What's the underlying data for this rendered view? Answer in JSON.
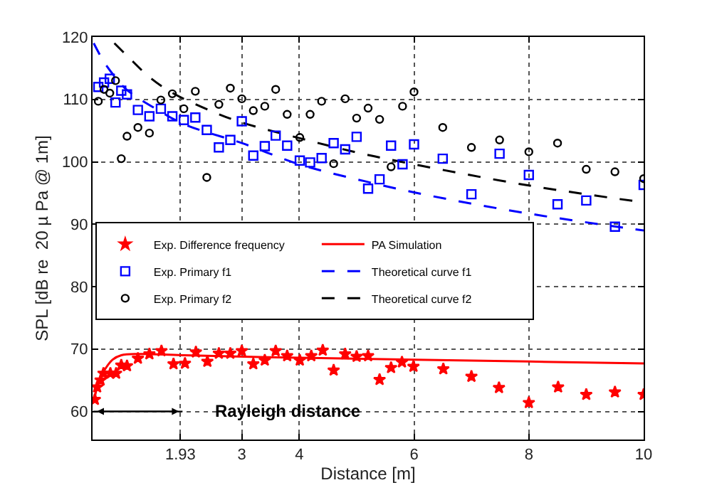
{
  "chart_data": {
    "type": "scatter",
    "xlabel": "Distance [m]",
    "ylabel": "SPL [dB re  20 µ Pa @ 1m]",
    "xlim": [
      0.4,
      10
    ],
    "ylim": [
      55.5,
      120
    ],
    "xticks": [
      1.93,
      3,
      4,
      6,
      8,
      10
    ],
    "yticks": [
      60,
      70,
      80,
      90,
      100,
      110,
      120
    ],
    "grid": true,
    "legend": "left",
    "annotations": [
      "Rayleigh distance"
    ],
    "series": [
      {
        "name": "Exp. Difference frequency",
        "marker": "star",
        "color": "#ff0000",
        "x": [
          0.44,
          0.48,
          0.54,
          0.59,
          0.71,
          0.81,
          0.9,
          1.0,
          1.19,
          1.39,
          1.6,
          1.81,
          2.01,
          2.2,
          2.4,
          2.6,
          2.8,
          3.0,
          3.2,
          3.4,
          3.59,
          3.79,
          4.01,
          4.21,
          4.41,
          4.6,
          4.8,
          5.0,
          5.2,
          5.4,
          5.6,
          5.79,
          5.99,
          6.51,
          7.0,
          7.48,
          8.0,
          8.51,
          9.0,
          9.5,
          10.0
        ],
        "values": [
          61.9,
          63.9,
          65.0,
          66.1,
          66.1,
          66.1,
          67.4,
          67.3,
          68.5,
          69.2,
          69.7,
          67.6,
          67.7,
          69.5,
          68.0,
          69.3,
          69.3,
          69.7,
          67.6,
          68.2,
          69.7,
          68.9,
          68.2,
          68.9,
          69.8,
          66.6,
          69.2,
          68.8,
          68.9,
          65.1,
          67.0,
          67.9,
          67.2,
          66.8,
          65.6,
          63.8,
          61.4,
          63.9,
          62.7,
          63.1,
          62.7
        ]
      },
      {
        "name": "PA Simulation",
        "type": "line",
        "line_style": "solid",
        "color": "#ff0000",
        "x": [
          0.42,
          0.5,
          0.6,
          0.75,
          0.9,
          1.2,
          2,
          4,
          6,
          8,
          10
        ],
        "values": [
          61.5,
          64.5,
          66.5,
          68.3,
          69.0,
          69.2,
          69.0,
          68.6,
          68.3,
          68.0,
          67.7
        ]
      },
      {
        "name": "Exp. Primary f1",
        "marker": "square",
        "color": "#0000ff",
        "x": [
          0.5,
          0.6,
          0.7,
          0.8,
          0.9,
          1.0,
          1.19,
          1.39,
          1.59,
          1.79,
          1.99,
          2.19,
          2.39,
          2.6,
          2.8,
          3.0,
          3.2,
          3.4,
          3.59,
          3.79,
          4.01,
          4.19,
          4.39,
          4.6,
          4.8,
          5.0,
          5.2,
          5.4,
          5.6,
          5.8,
          6.0,
          6.5,
          7.0,
          7.49,
          8.0,
          8.5,
          9.0,
          9.5,
          10.0
        ],
        "values": [
          112.0,
          112.7,
          113.3,
          109.5,
          111.4,
          110.8,
          108.3,
          107.3,
          108.5,
          107.3,
          106.7,
          107.1,
          105.1,
          102.3,
          103.5,
          106.5,
          101.0,
          102.5,
          104.2,
          102.6,
          100.2,
          99.9,
          100.6,
          103.0,
          102.0,
          104.0,
          95.7,
          97.2,
          102.6,
          99.6,
          102.8,
          100.5,
          94.8,
          101.3,
          97.9,
          93.2,
          93.8,
          89.6,
          96.3
        ]
      },
      {
        "name": "Theoretical curve f1",
        "type": "line",
        "line_style": "dashed",
        "color": "#0000ff",
        "x": [
          0.42,
          0.6,
          0.8,
          1.0,
          1.5,
          2,
          3,
          4,
          5,
          6,
          7,
          8,
          9,
          10
        ],
        "values": [
          119,
          116,
          113.5,
          111.5,
          108.5,
          106,
          103,
          99.6,
          97.2,
          95.1,
          93.3,
          91.7,
          90.3,
          89
        ]
      },
      {
        "name": "Exp. Primary f2",
        "marker": "circle",
        "color": "#000000",
        "x": [
          0.5,
          0.6,
          0.7,
          0.8,
          0.9,
          1.0,
          1.19,
          1.39,
          1.59,
          1.79,
          1.99,
          2.19,
          2.39,
          2.6,
          2.8,
          3.0,
          3.2,
          3.4,
          3.59,
          3.79,
          4.01,
          4.19,
          4.39,
          4.6,
          4.8,
          5.0,
          5.2,
          5.4,
          5.6,
          5.8,
          6.0,
          6.5,
          7.0,
          7.49,
          8.0,
          8.5,
          9.0,
          9.5,
          10.0
        ],
        "values": [
          109.7,
          111.6,
          111.0,
          113.0,
          100.5,
          104.1,
          105.5,
          104.6,
          109.9,
          110.9,
          108.5,
          111.3,
          97.5,
          109.2,
          111.8,
          110.1,
          108.2,
          108.9,
          111.6,
          107.6,
          103.9,
          107.6,
          109.7,
          99.7,
          110.1,
          107.0,
          108.6,
          106.8,
          99.2,
          108.9,
          111.2,
          105.5,
          102.3,
          103.5,
          101.6,
          103.0,
          98.8,
          98.4,
          97.3
        ]
      },
      {
        "name": "Theoretical curve f2",
        "type": "line",
        "line_style": "dashed",
        "color": "#000000",
        "x": [
          0.78,
          1.0,
          1.4,
          1.8,
          2.5,
          3,
          4,
          5,
          6,
          8,
          10
        ],
        "values": [
          119,
          117,
          113.5,
          111,
          108,
          106.3,
          103.8,
          101.5,
          99.6,
          96.2,
          93.5
        ]
      }
    ]
  }
}
